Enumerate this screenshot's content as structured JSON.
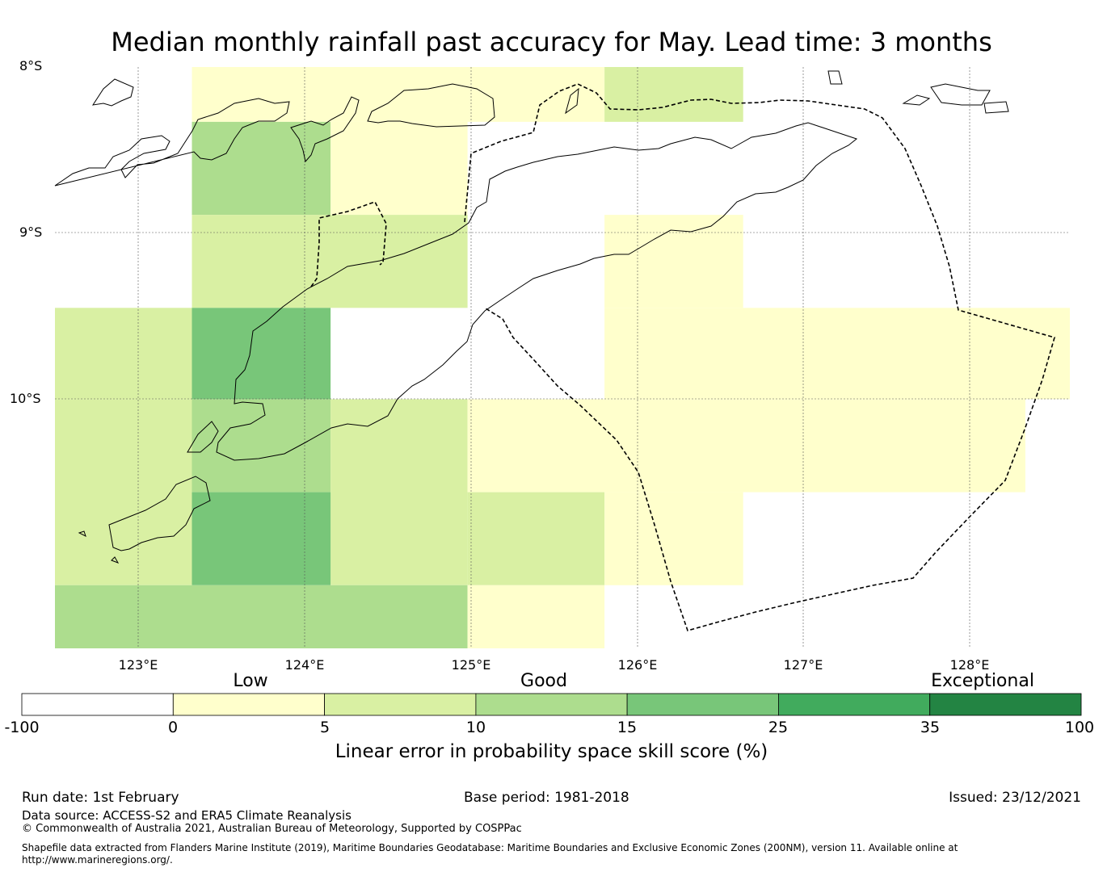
{
  "title": "Median monthly rainfall past accuracy for May. Lead time: 3 months",
  "map": {
    "lat_labels": [
      "8°S",
      "9°S",
      "10°S"
    ],
    "lon_labels": [
      "123°E",
      "124°E",
      "125°E",
      "126°E",
      "127°E",
      "128°E"
    ],
    "lon_range": [
      122.5,
      128.65
    ],
    "lat_range": [
      -8.0,
      -11.5
    ],
    "cells": [
      {
        "lon": [
          123.33,
          125.83
        ],
        "lat": [
          -8.0,
          -8.33
        ],
        "score": 2
      },
      {
        "lon": [
          125.83,
          126.67
        ],
        "lat": [
          -8.0,
          -8.33
        ],
        "score": 7
      },
      {
        "lon": [
          123.33,
          124.17
        ],
        "lat": [
          -8.33,
          -8.89
        ],
        "score": 12
      },
      {
        "lon": [
          124.17,
          125.0
        ],
        "lat": [
          -8.33,
          -8.89
        ],
        "score": 2
      },
      {
        "lon": [
          123.33,
          125.0
        ],
        "lat": [
          -8.89,
          -9.45
        ],
        "score": 7
      },
      {
        "lon": [
          125.83,
          126.67
        ],
        "lat": [
          -8.89,
          -9.45
        ],
        "score": 2
      },
      {
        "lon": [
          122.5,
          123.33
        ],
        "lat": [
          -9.45,
          -10.0
        ],
        "score": 7
      },
      {
        "lon": [
          123.33,
          124.17
        ],
        "lat": [
          -9.45,
          -10.0
        ],
        "score": 18
      },
      {
        "lon": [
          125.83,
          128.65
        ],
        "lat": [
          -9.45,
          -10.0
        ],
        "score": 2
      },
      {
        "lon": [
          122.5,
          123.33
        ],
        "lat": [
          -10.0,
          -11.12
        ],
        "score": 7
      },
      {
        "lon": [
          123.33,
          124.17
        ],
        "lat": [
          -10.0,
          -10.56
        ],
        "score": 12
      },
      {
        "lon": [
          124.17,
          125.0
        ],
        "lat": [
          -10.0,
          -11.12
        ],
        "score": 7
      },
      {
        "lon": [
          125.0,
          128.38
        ],
        "lat": [
          -10.0,
          -10.56
        ],
        "score": 2
      },
      {
        "lon": [
          123.33,
          124.17
        ],
        "lat": [
          -10.56,
          -11.12
        ],
        "score": 18
      },
      {
        "lon": [
          125.0,
          125.83
        ],
        "lat": [
          -10.56,
          -11.12
        ],
        "score": 7
      },
      {
        "lon": [
          125.83,
          126.67
        ],
        "lat": [
          -10.56,
          -11.12
        ],
        "score": 2
      },
      {
        "lon": [
          122.5,
          125.0
        ],
        "lat": [
          -11.12,
          -11.5
        ],
        "score": 12
      },
      {
        "lon": [
          125.0,
          125.83
        ],
        "lat": [
          -11.12,
          -11.5
        ],
        "score": 2
      }
    ]
  },
  "colorbar": {
    "categories": [
      "Low",
      "Good",
      "Exceptional"
    ],
    "ticks": [
      "-100",
      "0",
      "5",
      "10",
      "15",
      "25",
      "35",
      "100"
    ],
    "bins": [
      -100,
      0,
      5,
      10,
      15,
      25,
      35,
      100
    ],
    "colors": [
      "#ffffff",
      "#ffffcc",
      "#d9f0a3",
      "#addd8e",
      "#78c679",
      "#41ab5d",
      "#238443"
    ],
    "title": "Linear error in probability space skill score (%)"
  },
  "footer": {
    "run_date": "Run date: 1st February",
    "base_period": "Base period: 1981-2018",
    "issued": "Issued: 23/12/2021",
    "data_source": "Data source: ACCESS-S2 and ERA5 Climate Reanalysis",
    "copyright": "© Commonwealth of Australia 2021, Australian Bureau of Meteorology, Supported by COSPPac",
    "shapefile": "Shapefile data extracted from Flanders Marine Institute (2019), Maritime Boundaries Geodatabase: Maritime Boundaries and Exclusive Economic Zones (200NM), version 11. Available online at http://www.marineregions.org/."
  }
}
